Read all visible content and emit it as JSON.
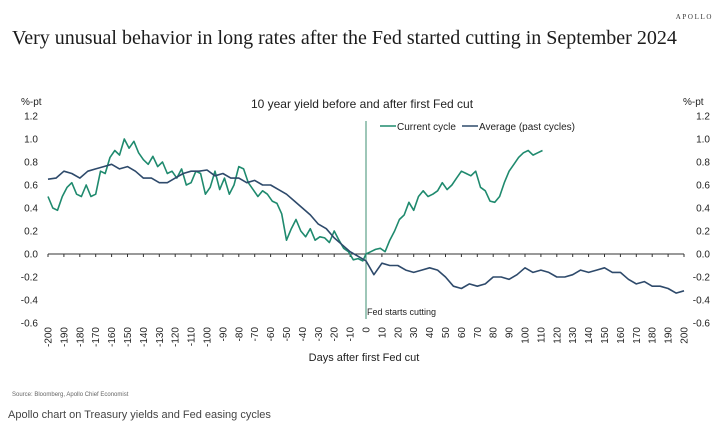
{
  "brand": "APOLLO",
  "headline": "Very unusual behavior in long rates after the Fed started cutting in September 2024",
  "source": "Source: Bloomberg, Apollo Chief Economist",
  "caption": "Apollo chart on Treasury yields and Fed easing cycles",
  "colors": {
    "current": "#1f8a6e",
    "average": "#2e4a6b",
    "axis": "#333333",
    "vline": "#3c8f72"
  },
  "chart_data": {
    "type": "line",
    "title": "10 year yield before and after first Fed cut",
    "xlabel": "Days after first Fed cut",
    "ylabel_left": "%-pt",
    "ylabel_right": "%-pt",
    "xlim": [
      -200,
      200
    ],
    "ylim": [
      -0.6,
      1.2
    ],
    "x_ticks": [
      "-200",
      "-190",
      "-180",
      "-170",
      "-160",
      "-150",
      "-140",
      "-130",
      "-120",
      "-110",
      "-100",
      "-90",
      "-80",
      "-70",
      "-60",
      "-50",
      "-40",
      "-30",
      "-20",
      "-10",
      "0",
      "10",
      "20",
      "30",
      "40",
      "50",
      "60",
      "70",
      "80",
      "90",
      "100",
      "110",
      "120",
      "130",
      "140",
      "150",
      "160",
      "170",
      "180",
      "190",
      "200"
    ],
    "y_ticks": [
      "1.2",
      "1.0",
      "0.8",
      "0.6",
      "0.4",
      "0.2",
      "0.0",
      "-0.2",
      "-0.4",
      "-0.6"
    ],
    "annotation": "Fed starts cutting",
    "annotation_x": 0,
    "legend": [
      "Current cycle",
      "Average (past cycles)"
    ],
    "legend_position": "top-center",
    "series": [
      {
        "name": "Current cycle",
        "x": [
          -200,
          -197,
          -194,
          -191,
          -188,
          -185,
          -182,
          -179,
          -176,
          -173,
          -170,
          -167,
          -164,
          -161,
          -158,
          -155,
          -152,
          -149,
          -146,
          -143,
          -140,
          -137,
          -134,
          -131,
          -128,
          -125,
          -122,
          -119,
          -116,
          -113,
          -110,
          -107,
          -104,
          -101,
          -98,
          -95,
          -92,
          -89,
          -86,
          -83,
          -80,
          -77,
          -74,
          -71,
          -68,
          -65,
          -62,
          -59,
          -56,
          -53,
          -50,
          -47,
          -44,
          -41,
          -38,
          -35,
          -32,
          -29,
          -26,
          -23,
          -20,
          -17,
          -14,
          -11,
          -8,
          -5,
          -2,
          0,
          3,
          6,
          9,
          12,
          15,
          18,
          21,
          24,
          27,
          30,
          33,
          36,
          39,
          42,
          45,
          48,
          51,
          54,
          57,
          60,
          63,
          66,
          69,
          72,
          75,
          78,
          81,
          84,
          87,
          90,
          93,
          96,
          99,
          102,
          105,
          108,
          111
        ],
        "y": [
          0.5,
          0.4,
          0.38,
          0.5,
          0.58,
          0.62,
          0.52,
          0.5,
          0.6,
          0.5,
          0.52,
          0.72,
          0.7,
          0.84,
          0.9,
          0.86,
          1.0,
          0.92,
          0.98,
          0.88,
          0.82,
          0.78,
          0.85,
          0.76,
          0.8,
          0.7,
          0.72,
          0.66,
          0.74,
          0.6,
          0.62,
          0.72,
          0.7,
          0.52,
          0.58,
          0.72,
          0.56,
          0.66,
          0.52,
          0.6,
          0.76,
          0.74,
          0.62,
          0.56,
          0.5,
          0.55,
          0.52,
          0.46,
          0.44,
          0.35,
          0.12,
          0.22,
          0.3,
          0.2,
          0.15,
          0.22,
          0.12,
          0.15,
          0.14,
          0.1,
          0.2,
          0.12,
          0.05,
          0.02,
          -0.05,
          -0.04,
          -0.06,
          0.0,
          0.02,
          0.04,
          0.05,
          0.02,
          0.12,
          0.2,
          0.3,
          0.34,
          0.45,
          0.38,
          0.5,
          0.55,
          0.5,
          0.52,
          0.55,
          0.62,
          0.56,
          0.6,
          0.66,
          0.72,
          0.7,
          0.68,
          0.72,
          0.58,
          0.55,
          0.46,
          0.45,
          0.5,
          0.62,
          0.72,
          0.78,
          0.84,
          0.88,
          0.9,
          0.86,
          0.88,
          0.9
        ]
      },
      {
        "name": "Average (past cycles)",
        "x": [
          -200,
          -195,
          -190,
          -185,
          -180,
          -175,
          -170,
          -165,
          -160,
          -155,
          -150,
          -145,
          -140,
          -135,
          -130,
          -125,
          -120,
          -115,
          -110,
          -105,
          -100,
          -95,
          -90,
          -85,
          -80,
          -75,
          -70,
          -65,
          -60,
          -55,
          -50,
          -45,
          -40,
          -35,
          -30,
          -25,
          -20,
          -15,
          -10,
          -5,
          0,
          5,
          10,
          15,
          20,
          25,
          30,
          35,
          40,
          45,
          50,
          55,
          60,
          65,
          70,
          75,
          80,
          85,
          90,
          95,
          100,
          105,
          110,
          115,
          120,
          125,
          130,
          135,
          140,
          145,
          150,
          155,
          160,
          165,
          170,
          175,
          180,
          185,
          190,
          195,
          200
        ],
        "y": [
          0.65,
          0.66,
          0.72,
          0.7,
          0.66,
          0.72,
          0.74,
          0.76,
          0.78,
          0.74,
          0.76,
          0.72,
          0.66,
          0.66,
          0.62,
          0.62,
          0.66,
          0.7,
          0.72,
          0.72,
          0.73,
          0.68,
          0.7,
          0.66,
          0.66,
          0.62,
          0.64,
          0.6,
          0.6,
          0.56,
          0.52,
          0.46,
          0.4,
          0.34,
          0.26,
          0.22,
          0.14,
          0.08,
          0.02,
          -0.02,
          -0.06,
          -0.18,
          -0.08,
          -0.1,
          -0.1,
          -0.14,
          -0.16,
          -0.14,
          -0.12,
          -0.14,
          -0.2,
          -0.28,
          -0.3,
          -0.26,
          -0.28,
          -0.26,
          -0.2,
          -0.2,
          -0.22,
          -0.18,
          -0.12,
          -0.16,
          -0.14,
          -0.16,
          -0.2,
          -0.2,
          -0.18,
          -0.14,
          -0.16,
          -0.14,
          -0.12,
          -0.16,
          -0.16,
          -0.22,
          -0.26,
          -0.24,
          -0.28,
          -0.28,
          -0.3,
          -0.34,
          -0.32
        ]
      }
    ]
  }
}
